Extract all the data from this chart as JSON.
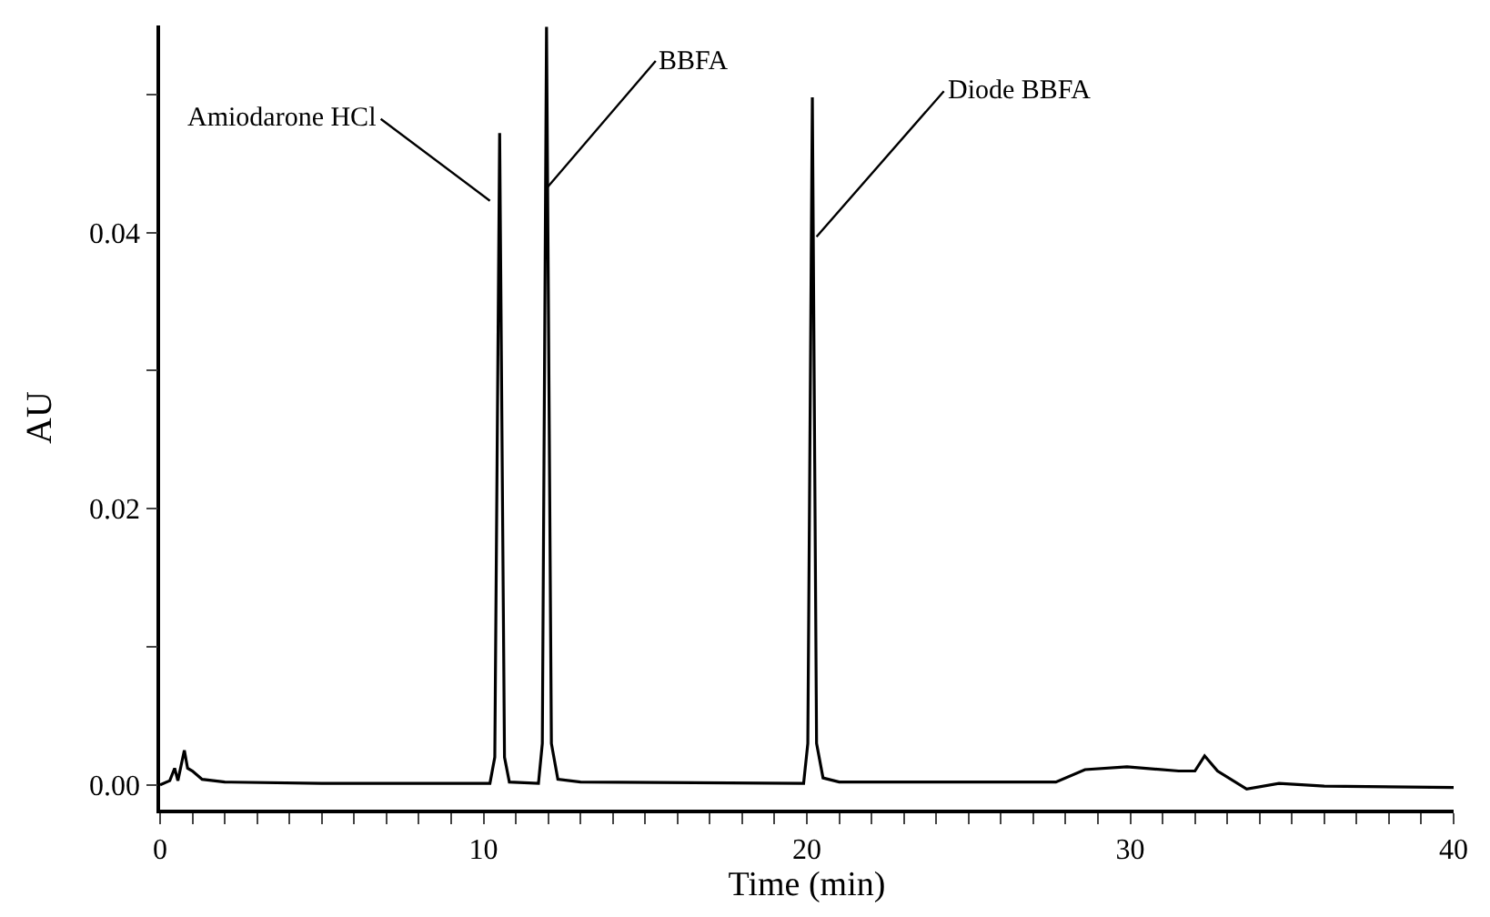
{
  "chart_data": {
    "type": "line",
    "xlabel": "Time (min)",
    "ylabel": "AU",
    "color": "#000000",
    "marker": "none",
    "line_style": "solid",
    "legend": false,
    "xlim": [
      0,
      40
    ],
    "ylim": [
      -0.0018,
      0.055
    ],
    "xticks": [
      0,
      {
        "value": 1,
        "label": null
      },
      {
        "value": 2,
        "label": null
      },
      {
        "value": 3,
        "label": null
      },
      {
        "value": 4,
        "label": null
      },
      {
        "value": 5,
        "label": null
      },
      {
        "value": 6,
        "label": null
      },
      {
        "value": 7,
        "label": null
      },
      {
        "value": 8,
        "label": null
      },
      {
        "value": 9,
        "label": null
      },
      10,
      {
        "value": 11,
        "label": null
      },
      {
        "value": 12,
        "label": null
      },
      {
        "value": 13,
        "label": null
      },
      {
        "value": 14,
        "label": null
      },
      {
        "value": 15,
        "label": null
      },
      {
        "value": 16,
        "label": null
      },
      {
        "value": 17,
        "label": null
      },
      {
        "value": 18,
        "label": null
      },
      {
        "value": 19,
        "label": null
      },
      20,
      {
        "value": 21,
        "label": null
      },
      {
        "value": 22,
        "label": null
      },
      {
        "value": 23,
        "label": null
      },
      {
        "value": 24,
        "label": null
      },
      {
        "value": 25,
        "label": null
      },
      {
        "value": 26,
        "label": null
      },
      {
        "value": 27,
        "label": null
      },
      {
        "value": 28,
        "label": null
      },
      {
        "value": 29,
        "label": null
      },
      30,
      {
        "value": 31,
        "label": null
      },
      {
        "value": 32,
        "label": null
      },
      {
        "value": 33,
        "label": null
      },
      {
        "value": 34,
        "label": null
      },
      {
        "value": 35,
        "label": null
      },
      {
        "value": 36,
        "label": null
      },
      {
        "value": 37,
        "label": null
      },
      {
        "value": 38,
        "label": null
      },
      {
        "value": 39,
        "label": null
      },
      40
    ],
    "yticks": [
      {
        "value": 0,
        "label": "0.00"
      },
      {
        "value": 0.01,
        "label": null
      },
      {
        "value": 0.02,
        "label": "0.02"
      },
      {
        "value": 0.03,
        "label": null
      },
      {
        "value": 0.04,
        "label": "0.04"
      },
      {
        "value": 0.05,
        "label": null
      }
    ],
    "x": [
      0,
      0.3,
      0.45,
      0.55,
      0.75,
      0.85,
      1.0,
      1.3,
      2,
      5,
      10.2,
      10.35,
      10.5,
      10.65,
      10.8,
      11.7,
      11.82,
      11.95,
      12.1,
      12.3,
      13,
      19.9,
      20.03,
      20.17,
      20.3,
      20.5,
      21,
      27.7,
      28.6,
      29.9,
      31.5,
      32.0,
      32.3,
      32.7,
      33.6,
      34.6,
      36,
      40
    ],
    "values": [
      0,
      0.0003,
      0.0012,
      0.0003,
      0.0025,
      0.0012,
      0.001,
      0.0004,
      0.0002,
      0.0001,
      0.0001,
      0.002,
      0.0472,
      0.002,
      0.0002,
      0.0001,
      0.003,
      0.0549,
      0.003,
      0.0004,
      0.0002,
      0.0001,
      0.003,
      0.0498,
      0.003,
      0.0005,
      0.0002,
      0.0002,
      0.0011,
      0.0013,
      0.001,
      0.001,
      0.0021,
      0.001,
      -0.0003,
      0.0001,
      -0.0001,
      -0.0002
    ],
    "annotations": [
      {
        "text": "Amiodarone HCl",
        "x": 10.2,
        "y": 0.0423
      },
      {
        "text": "BBFA",
        "x": 11.95,
        "y": 0.0432
      },
      {
        "text": "Diode BBFA",
        "x": 20.3,
        "y": 0.0397
      }
    ]
  }
}
